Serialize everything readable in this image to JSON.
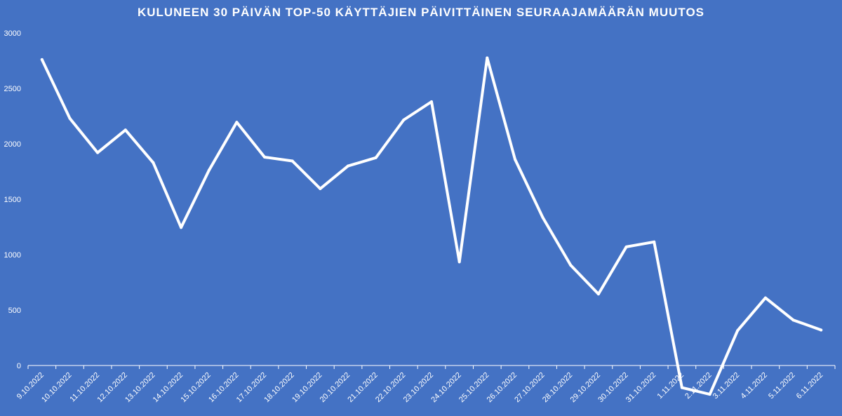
{
  "chart_data": {
    "type": "line",
    "title": "KULUNEEN 30 PÄIVÄN TOP-50 KÄYTTÄJIEN PÄIVITTÄINEN SEURAAJAMÄÄRÄN MUUTOS",
    "xlabel": "",
    "ylabel": "",
    "ylim": [
      0,
      3000
    ],
    "yticks": [
      0,
      500,
      1000,
      1500,
      2000,
      2500,
      3000
    ],
    "grid": false,
    "drop_lines": true,
    "categories": [
      "9.10.2022",
      "10.10.2022",
      "11.10.2022",
      "12.10.2022",
      "13.10.2022",
      "14.10.2022",
      "15.10.2022",
      "16.10.2022",
      "17.10.2022",
      "18.10.2022",
      "19.10.2022",
      "20.10.2022",
      "21.10.2022",
      "22.10.2022",
      "23.10.2022",
      "24.10.2022",
      "25.10.2022",
      "26.10.2022",
      "27.10.2022",
      "28.10.2022",
      "29.10.2022",
      "30.10.2022",
      "31.10.2022",
      "1.11.2022",
      "2.11.2022",
      "3.11.2022",
      "4.11.2022",
      "5.11.2022",
      "6.11.2022"
    ],
    "series": [
      {
        "values": [
          2760,
          2230,
          1920,
          2125,
          1830,
          1245,
          1760,
          2195,
          1880,
          1845,
          1595,
          1800,
          1875,
          2215,
          2380,
          935,
          2775,
          1860,
          1335,
          905,
          645,
          1070,
          1115,
          -200,
          -260,
          315,
          610,
          410,
          320
        ]
      }
    ]
  },
  "style": {
    "background": "#4472c4",
    "line_color": "#ffffff"
  }
}
